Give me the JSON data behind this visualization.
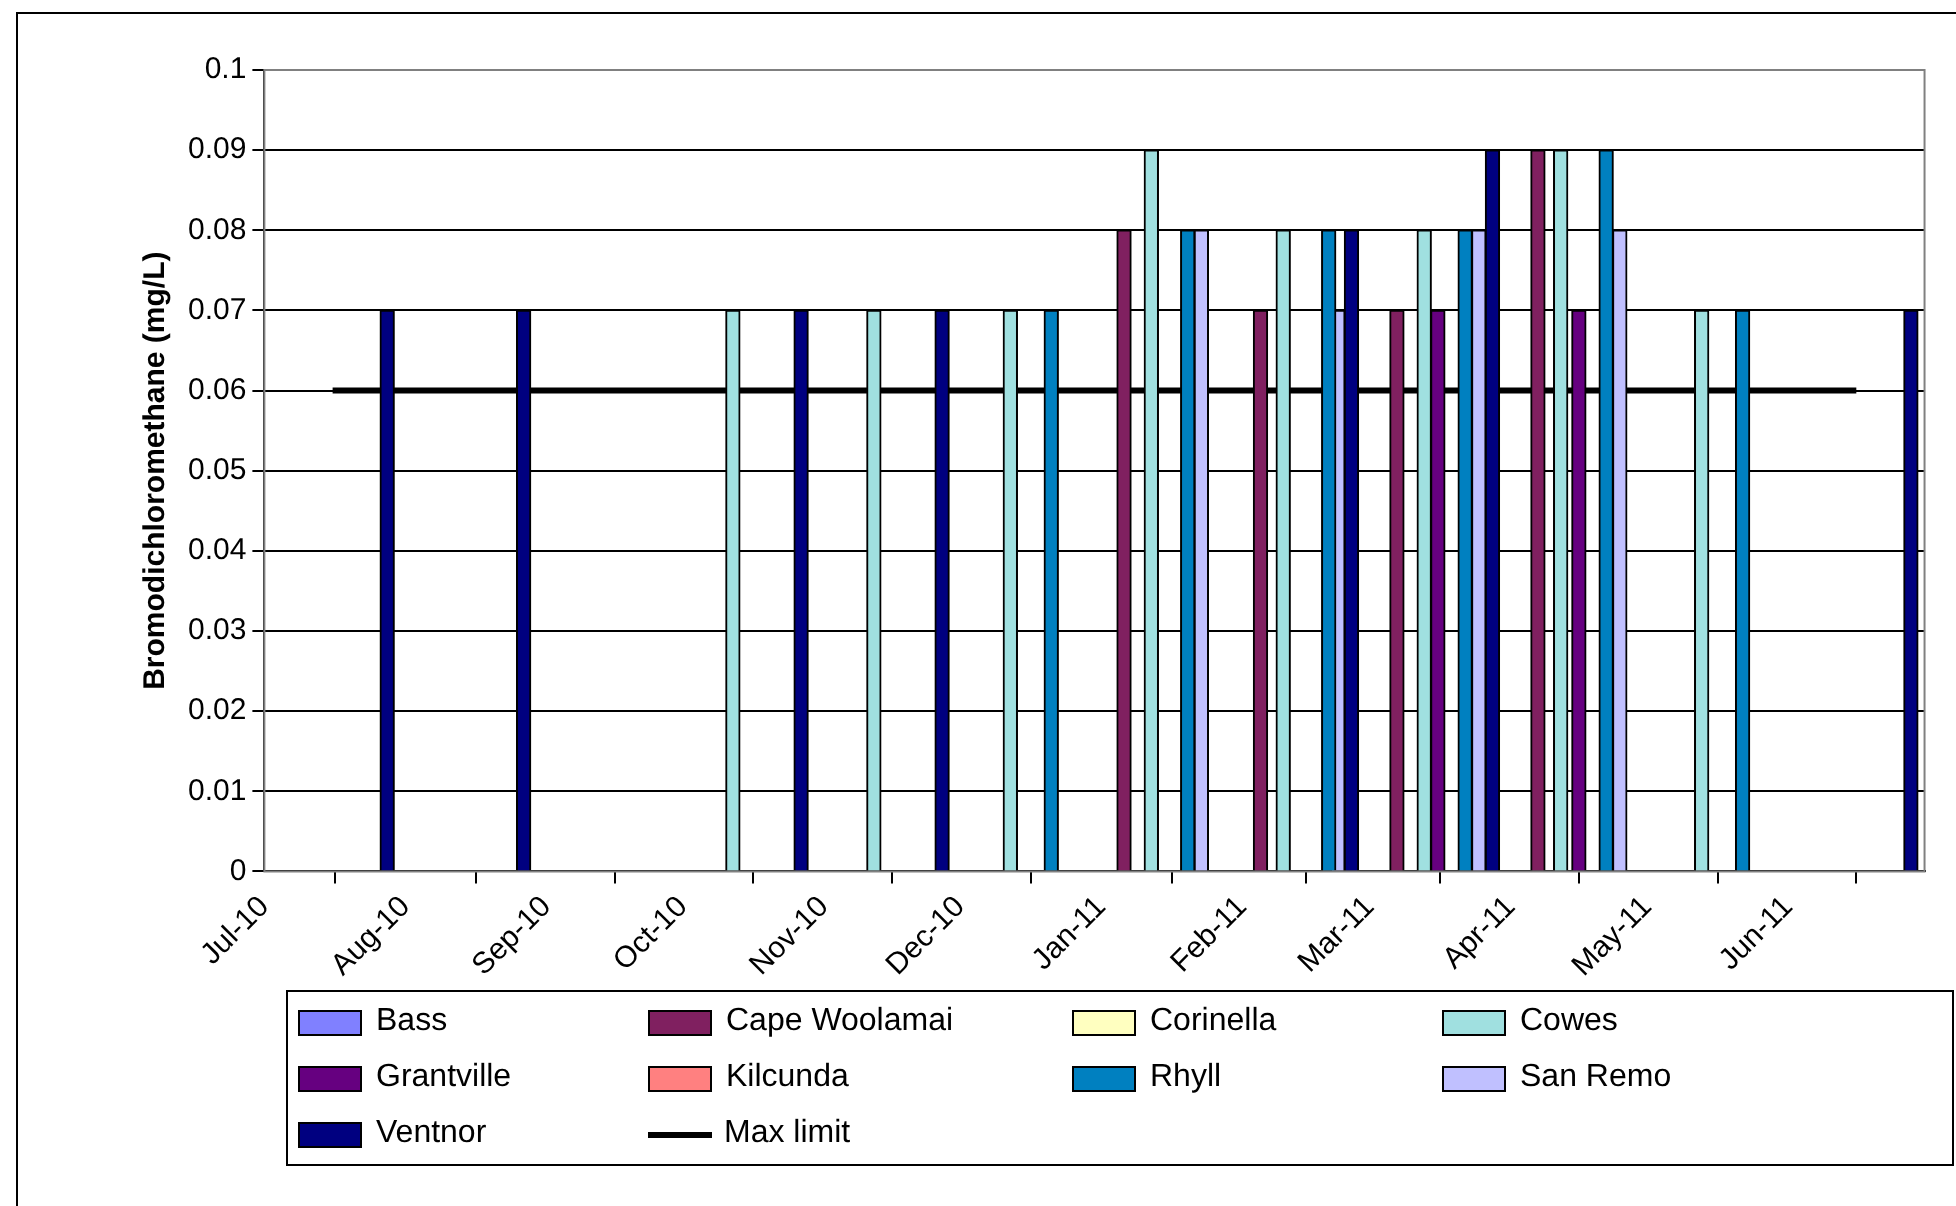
{
  "chart_data": {
    "type": "bar",
    "ylabel": "Bromodichloromethane (mg/L)",
    "xlim": [
      "2010-07-01",
      "2011-07-01"
    ],
    "xticks": [
      {
        "value": "2010-07-01",
        "label": "Jul-10"
      },
      {
        "value": "2010-08-01",
        "label": "Aug-10"
      },
      {
        "value": "2010-09-01",
        "label": "Sep-10"
      },
      {
        "value": "2010-10-01",
        "label": "Oct-10"
      },
      {
        "value": "2010-11-01",
        "label": "Nov-10"
      },
      {
        "value": "2010-12-01",
        "label": "Dec-10"
      },
      {
        "value": "2011-01-01",
        "label": "Jan-11"
      },
      {
        "value": "2011-02-01",
        "label": "Feb-11"
      },
      {
        "value": "2011-03-01",
        "label": "Mar-11"
      },
      {
        "value": "2011-04-01",
        "label": "Apr-11"
      },
      {
        "value": "2011-05-01",
        "label": "May-11"
      },
      {
        "value": "2011-06-01",
        "label": "Jun-11"
      },
      {
        "value": "2011-07-01",
        "label": null
      }
    ],
    "ylim": [
      0,
      0.1
    ],
    "yticks": [
      0,
      0.01,
      0.02,
      0.03,
      0.04,
      0.05,
      0.06,
      0.07,
      0.08,
      0.09,
      0.1
    ],
    "grid": "y",
    "legend": "bottom",
    "series": [
      {
        "name": "Bass",
        "color": "#8080ff"
      },
      {
        "name": "Cape Woolamai",
        "color": "#802060",
        "x": [
          "2011-01-06",
          "2011-02-05",
          "2011-03-07",
          "2011-04-07"
        ],
        "values": [
          0.08,
          0.07,
          0.07,
          0.09
        ]
      },
      {
        "name": "Corinella",
        "color": "#ffffc0"
      },
      {
        "name": "Cowes",
        "color": "#a0e0e0",
        "x": [
          "2010-10-12",
          "2010-11-12",
          "2010-12-12",
          "2011-01-12",
          "2011-02-10",
          "2011-03-13",
          "2011-04-12",
          "2011-05-13"
        ],
        "values": [
          0.07,
          0.07,
          0.07,
          0.09,
          0.08,
          0.08,
          0.09,
          0.07
        ]
      },
      {
        "name": "Grantville",
        "color": "#660080",
        "x": [
          "2011-03-16",
          "2011-04-16"
        ],
        "values": [
          0.07,
          0.07
        ]
      },
      {
        "name": "Kilcunda",
        "color": "#ff8080"
      },
      {
        "name": "Rhyll",
        "color": "#0080c0",
        "x": [
          "2010-12-21",
          "2011-01-20",
          "2011-02-20",
          "2011-03-22",
          "2011-04-22",
          "2011-05-22"
        ],
        "values": [
          0.07,
          0.08,
          0.08,
          0.08,
          0.09,
          0.07
        ]
      },
      {
        "name": "San Remo",
        "color": "#c0c0ff",
        "x": [
          "2011-01-23",
          "2011-02-22",
          "2011-03-25",
          "2011-04-25"
        ],
        "values": [
          0.08,
          0.07,
          0.08,
          0.08
        ]
      },
      {
        "name": "Ventnor",
        "color": "#000080",
        "x": [
          "2010-07-28",
          "2010-08-27",
          "2010-10-27",
          "2010-11-27",
          "2011-02-25",
          "2011-03-28",
          "2011-06-28"
        ],
        "values": [
          0.07,
          0.07,
          0.07,
          0.07,
          0.08,
          0.09,
          0.07
        ]
      },
      {
        "name": "Max limit",
        "type": "line",
        "color": "#000000",
        "x": [
          "2010-07-16",
          "2011-06-16"
        ],
        "values": [
          0.06,
          0.06
        ]
      }
    ]
  }
}
